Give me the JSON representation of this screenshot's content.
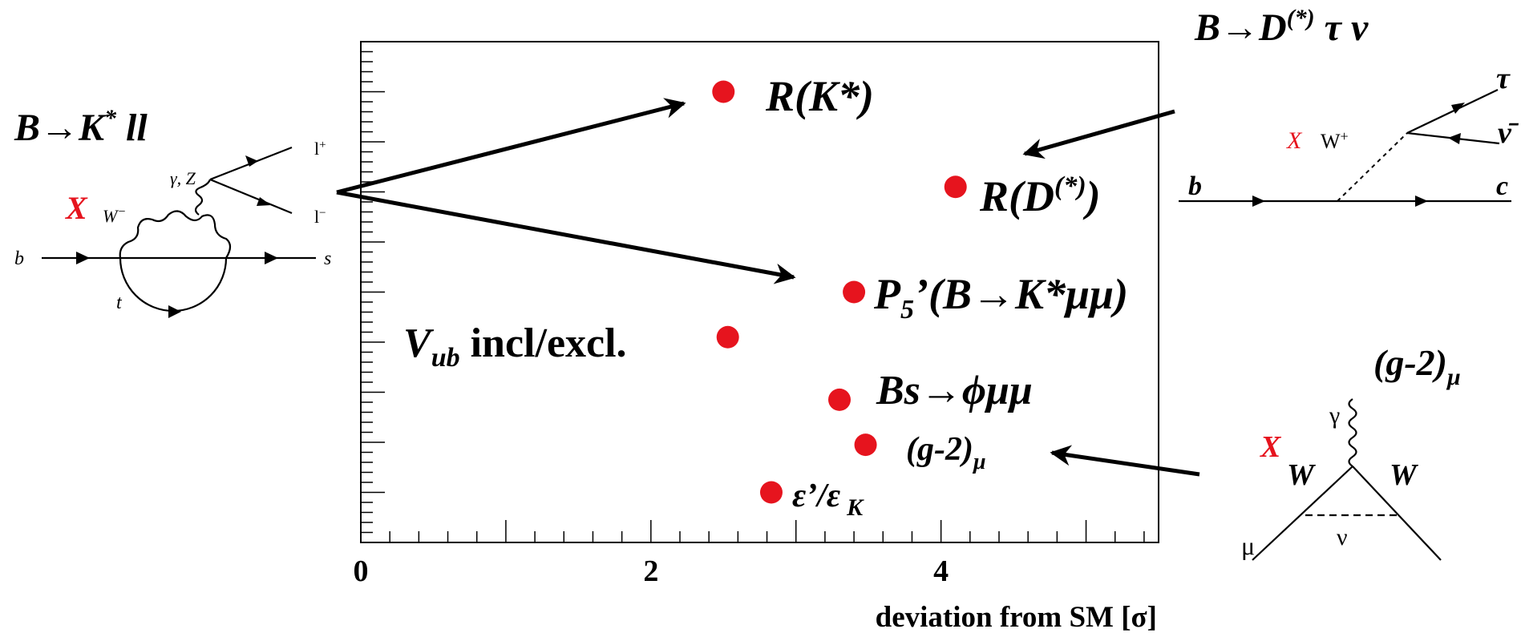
{
  "chart_data": {
    "type": "scatter",
    "xlabel": "deviation from SM [σ]",
    "xlim": [
      0,
      5.5
    ],
    "ylim": [
      0,
      10
    ],
    "x_ticks": [
      0,
      2,
      4
    ],
    "y_ticks_shown": false,
    "grid": false,
    "point_color": "#e6141e",
    "points": [
      {
        "x": 2.5,
        "y": 9.0,
        "label": "R(K*)"
      },
      {
        "x": 4.1,
        "y": 7.1,
        "label": "R(D(*))"
      },
      {
        "x": 3.4,
        "y": 5.0,
        "label": "P5’(B→K*μμ)"
      },
      {
        "x": 2.53,
        "y": 4.1,
        "label": "Vub incl/excl."
      },
      {
        "x": 3.3,
        "y": 2.85,
        "label": "Bs→ϕμμ"
      },
      {
        "x": 3.48,
        "y": 1.95,
        "label": "(g-2)μ"
      },
      {
        "x": 2.83,
        "y": 1.0,
        "label": "ε’/ε K"
      }
    ]
  },
  "labels": {
    "rk": "R(K*)",
    "rd_main": "R(D",
    "rd_sup": "(*)",
    "rd_close": ")",
    "p5_p": "P",
    "p5_sub": "5",
    "p5_rest": "’(B→K*μμ)",
    "vub_v": "V",
    "vub_sub": "ub",
    "vub_rest": " incl/excl.",
    "bs": "Bs→ϕμμ",
    "g2_main": "(g-2)",
    "g2_sub": "μ",
    "eps_main": "ε’/ε",
    "eps_sub": "K"
  },
  "left_diagram": {
    "title_main": "B→K",
    "title_sup": "*",
    "title_rest": " ll",
    "x": "X",
    "w": "W",
    "w_sup": "−",
    "gz": "γ, Z",
    "lplus": "l",
    "lplus_sup": "+",
    "lminus": "l",
    "lminus_sup": "−",
    "b": "b",
    "s": "s",
    "t": "t"
  },
  "tr_diagram": {
    "title_main": "B→D",
    "title_sup": "(*)",
    "title_rest": " τ ν",
    "tau": "τ",
    "nubar": "ν̄",
    "x": "X",
    "w": "W",
    "w_sup": "+",
    "b": "b",
    "c": "c"
  },
  "br_diagram": {
    "title_main": "(g-2)",
    "title_sub": "μ",
    "gamma": "γ",
    "x": "X",
    "w1": "W",
    "w2": "W",
    "nu": "ν",
    "mu": "μ"
  }
}
